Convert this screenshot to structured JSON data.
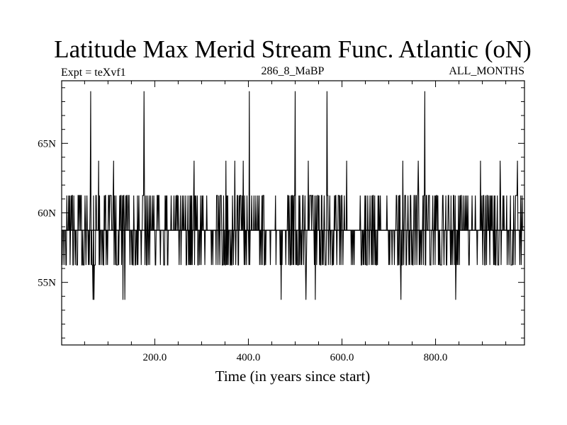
{
  "chart_data": {
    "type": "line",
    "title": "Latitude Max Merid Stream Func. Atlantic (oN)",
    "subtitle_left": "Expt = teXvf1",
    "subtitle_center": "286_8_MaBP",
    "subtitle_right": "ALL_MONTHS",
    "xlabel": "Time (in years since start)",
    "ylabel": "",
    "xlim": [
      1,
      990
    ],
    "ylim": [
      50.5,
      69.5
    ],
    "x_ticks": [
      {
        "value": 200,
        "label": "200.0"
      },
      {
        "value": 400,
        "label": "400.0"
      },
      {
        "value": 600,
        "label": "600.0"
      },
      {
        "value": 800,
        "label": "800.0"
      }
    ],
    "y_ticks": [
      {
        "value": 55,
        "label": "55N"
      },
      {
        "value": 60,
        "label": "60N"
      },
      {
        "value": 65,
        "label": "65N"
      }
    ],
    "baseline": 58.75,
    "levels": [
      53.75,
      56.25,
      58.75,
      61.25,
      63.75,
      68.75
    ],
    "spikes": [
      {
        "x": 63,
        "y": 68.75
      },
      {
        "x": 68,
        "y": 53.75
      },
      {
        "x": 70,
        "y": 53.75
      },
      {
        "x": 80,
        "y": 63.75
      },
      {
        "x": 112,
        "y": 63.75
      },
      {
        "x": 132,
        "y": 53.75
      },
      {
        "x": 136,
        "y": 53.75
      },
      {
        "x": 177,
        "y": 68.75
      },
      {
        "x": 284,
        "y": 63.75
      },
      {
        "x": 352,
        "y": 63.75
      },
      {
        "x": 371,
        "y": 63.75
      },
      {
        "x": 389,
        "y": 63.75
      },
      {
        "x": 402,
        "y": 68.75
      },
      {
        "x": 470,
        "y": 53.75
      },
      {
        "x": 500,
        "y": 68.75
      },
      {
        "x": 523,
        "y": 53.75
      },
      {
        "x": 528,
        "y": 63.75
      },
      {
        "x": 543,
        "y": 53.75
      },
      {
        "x": 568,
        "y": 68.75
      },
      {
        "x": 610,
        "y": 63.75
      },
      {
        "x": 726,
        "y": 53.75
      },
      {
        "x": 730,
        "y": 63.75
      },
      {
        "x": 763,
        "y": 63.75
      },
      {
        "x": 777,
        "y": 68.75
      },
      {
        "x": 843,
        "y": 53.75
      },
      {
        "x": 896,
        "y": 63.75
      },
      {
        "x": 938,
        "y": 63.75
      },
      {
        "x": 975,
        "y": 63.75
      }
    ]
  }
}
